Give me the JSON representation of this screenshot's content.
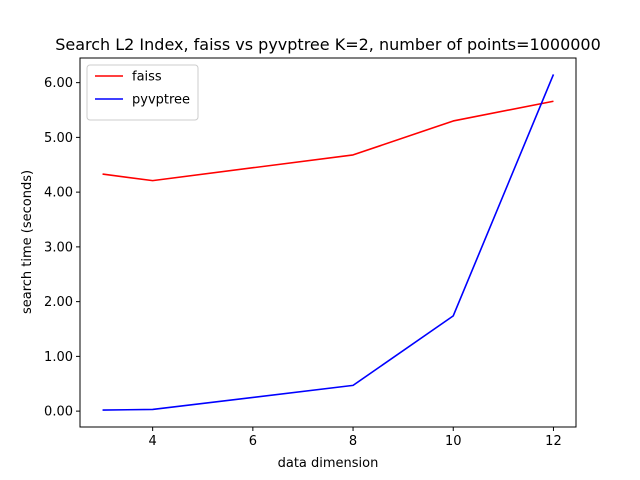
{
  "chart_data": {
    "type": "line",
    "title": "Search L2 Index, faiss vs pyvptree K=2, number of points=1000000",
    "xlabel": "data dimension",
    "ylabel": "search time (seconds)",
    "xlim": [
      2.55,
      12.45
    ],
    "ylim": [
      -0.29,
      6.45
    ],
    "xticks": [
      4,
      6,
      8,
      10,
      12
    ],
    "xtick_labels": [
      "4",
      "6",
      "8",
      "10",
      "12"
    ],
    "yticks": [
      0,
      1,
      2,
      3,
      4,
      5,
      6
    ],
    "ytick_labels": [
      "0.00",
      "1.00",
      "2.00",
      "3.00",
      "4.00",
      "5.00",
      "6.00"
    ],
    "grid": false,
    "legend_position": "upper-left",
    "x": [
      3,
      4,
      8,
      10,
      12
    ],
    "series": [
      {
        "name": "faiss",
        "color": "#ff0000",
        "values": [
          4.33,
          4.21,
          4.68,
          5.3,
          5.66
        ]
      },
      {
        "name": "pyvptree",
        "color": "#0000ff",
        "values": [
          0.02,
          0.03,
          0.47,
          1.74,
          6.15
        ]
      }
    ]
  }
}
